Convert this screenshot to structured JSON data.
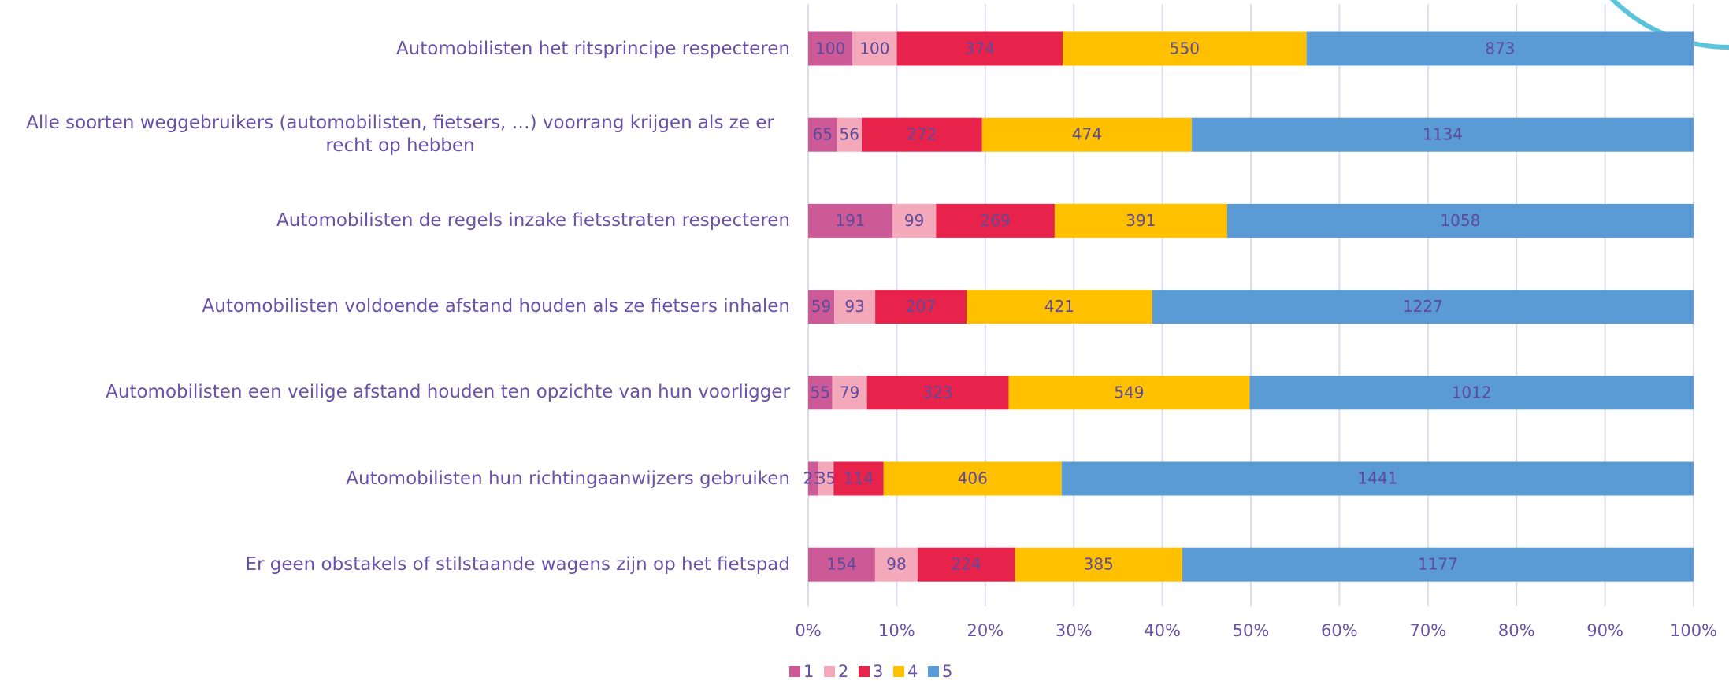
{
  "chart_data": {
    "type": "stacked-bar-percent",
    "categories": [
      "Automobilisten het ritsprincipe respecteren",
      "Alle soorten weggebruikers (automobilisten, fietsers, …) voorrang krijgen als ze er recht op hebben",
      "Automobilisten de regels inzake fietsstraten respecteren",
      "Automobilisten voldoende afstand houden als ze fietsers inhalen",
      "Automobilisten een veilige afstand houden ten opzichte van hun voorligger",
      "Automobilisten hun richtingaanwijzers gebruiken",
      "Er geen obstakels of stilstaande wagens zijn op het fietspad"
    ],
    "series": [
      {
        "name": "1",
        "color": "#cc5a96",
        "values": [
          100,
          65,
          191,
          59,
          55,
          23,
          154
        ]
      },
      {
        "name": "2",
        "color": "#f4a9bb",
        "values": [
          100,
          56,
          99,
          93,
          79,
          35,
          98
        ]
      },
      {
        "name": "3",
        "color": "#e8234b",
        "values": [
          374,
          272,
          269,
          207,
          323,
          114,
          224
        ]
      },
      {
        "name": "4",
        "color": "#ffc000",
        "values": [
          550,
          474,
          391,
          421,
          549,
          406,
          385
        ]
      },
      {
        "name": "5",
        "color": "#5b9bd5",
        "values": [
          873,
          1134,
          1058,
          1227,
          1012,
          1441,
          1177
        ]
      }
    ],
    "xlim": [
      0,
      100
    ],
    "xticks": [
      {
        "value": 0,
        "label": "0%"
      },
      {
        "value": 10,
        "label": "10%"
      },
      {
        "value": 20,
        "label": "20%"
      },
      {
        "value": 30,
        "label": "30%"
      },
      {
        "value": 40,
        "label": "40%"
      },
      {
        "value": 50,
        "label": "50%"
      },
      {
        "value": 60,
        "label": "60%"
      },
      {
        "value": 70,
        "label": "70%"
      },
      {
        "value": 80,
        "label": "80%"
      },
      {
        "value": 90,
        "label": "90%"
      },
      {
        "value": 100,
        "label": "100%"
      }
    ],
    "grid": true,
    "legend": "bottom"
  }
}
